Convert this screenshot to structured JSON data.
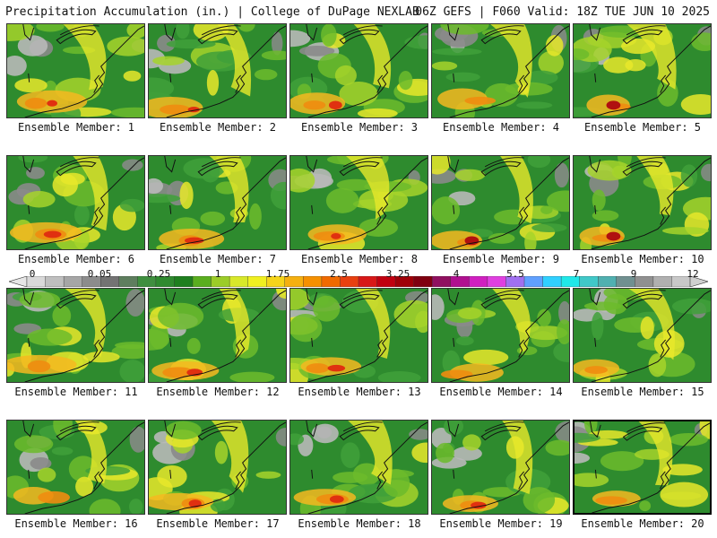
{
  "header": {
    "title_left": "Precipitation Accumulation (in.) | College of DuPage NEXLAB",
    "title_right": "06Z GEFS | F060 Valid: 18Z TUE JUN 10 2025"
  },
  "colorbar": {
    "tick_labels": [
      "0",
      "0.05",
      "0.25",
      "1",
      "1.75",
      "2.5",
      "3.25",
      "4",
      "5.5",
      "7",
      "9",
      "12"
    ],
    "colors": [
      "#d9d9d9",
      "#bfbfbf",
      "#a6a6a6",
      "#8c8c8c",
      "#737373",
      "#5e7e5e",
      "#3f8f3f",
      "#2f8a2f",
      "#1f7f1f",
      "#5aae1f",
      "#9ccc28",
      "#d8e82a",
      "#f0f020",
      "#f5d41a",
      "#f5b010",
      "#f59000",
      "#f06a00",
      "#e84010",
      "#d81818",
      "#c00010",
      "#a00008",
      "#800010",
      "#901060",
      "#b01090",
      "#d020c0",
      "#e040e0",
      "#a070f0",
      "#60a0ff",
      "#30d0ff",
      "#20e8e8",
      "#40c8c8",
      "#50b0b0",
      "#709090",
      "#909090",
      "#b0b0b0",
      "#c8c8c8"
    ]
  },
  "panels": [
    {
      "label": "Ensemble Member: 1"
    },
    {
      "label": "Ensemble Member: 2"
    },
    {
      "label": "Ensemble Member: 3"
    },
    {
      "label": "Ensemble Member: 4"
    },
    {
      "label": "Ensemble Member: 5"
    },
    {
      "label": "Ensemble Member: 6"
    },
    {
      "label": "Ensemble Member: 7"
    },
    {
      "label": "Ensemble Member: 8"
    },
    {
      "label": "Ensemble Member: 9"
    },
    {
      "label": "Ensemble Member: 10"
    },
    {
      "label": "Ensemble Member: 11"
    },
    {
      "label": "Ensemble Member: 12"
    },
    {
      "label": "Ensemble Member: 13"
    },
    {
      "label": "Ensemble Member: 14"
    },
    {
      "label": "Ensemble Member: 15"
    },
    {
      "label": "Ensemble Member: 16"
    },
    {
      "label": "Ensemble Member: 17"
    },
    {
      "label": "Ensemble Member: 18"
    },
    {
      "label": "Ensemble Member: 19"
    },
    {
      "label": "Ensemble Member: 20"
    }
  ]
}
